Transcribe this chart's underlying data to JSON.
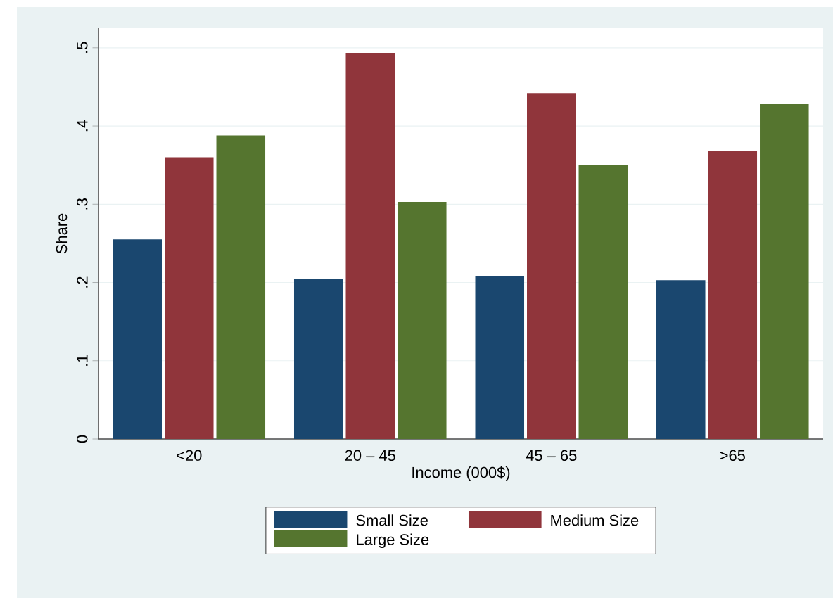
{
  "chart_data": {
    "type": "bar",
    "categories": [
      "<20",
      "20 – 45",
      "45 – 65",
      ">65"
    ],
    "series": [
      {
        "name": "Small Size",
        "color": "#1a476f",
        "values": [
          0.255,
          0.205,
          0.208,
          0.203
        ]
      },
      {
        "name": "Medium Size",
        "color": "#90353b",
        "values": [
          0.36,
          0.493,
          0.442,
          0.368
        ]
      },
      {
        "name": "Large Size",
        "color": "#55752f",
        "values": [
          0.388,
          0.303,
          0.35,
          0.428
        ]
      }
    ],
    "xlabel": "Income (000$)",
    "ylabel": "Share",
    "ylim": [
      0,
      0.525
    ],
    "yticks": [
      0,
      {
        "value": 0.1,
        "label": ".1"
      },
      {
        "value": 0.2,
        "label": ".2"
      },
      {
        "value": 0.3,
        "label": ".3"
      },
      {
        "value": 0.4,
        "label": ".4"
      },
      {
        "value": 0.5,
        "label": ".5"
      }
    ],
    "grid": "y",
    "legend": "bottom"
  }
}
